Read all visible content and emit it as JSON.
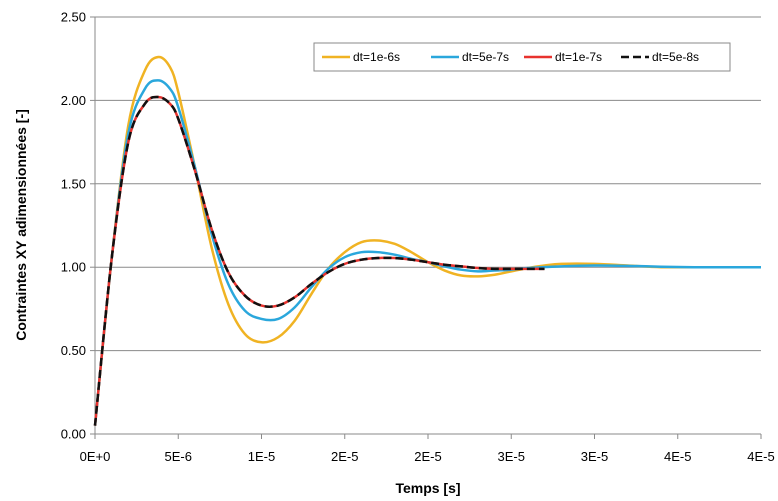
{
  "chart_data": {
    "type": "line",
    "xlabel": "Temps [s]",
    "ylabel": "Contraintes XY adimensionnées [-]",
    "xlim": [
      0,
      4e-05
    ],
    "ylim": [
      0,
      2.5
    ],
    "x_tick_values": [
      0,
      5e-06,
      1e-05,
      1.5e-05,
      2e-05,
      2.5e-05,
      3e-05,
      3.5e-05,
      4e-05
    ],
    "x_tick_labels": [
      "0E+0",
      "5E-6",
      "1E-5",
      "2E-5",
      "2E-5",
      "3E-5",
      "3E-5",
      "4E-5",
      "4E-5"
    ],
    "y_tick_values": [
      0,
      0.5,
      1.0,
      1.5,
      2.0,
      2.5
    ],
    "y_tick_labels": [
      "0.00",
      "0.50",
      "1.00",
      "1.50",
      "2.00",
      "2.50"
    ],
    "grid": "horizontal",
    "legend_position": "top-right",
    "series": [
      {
        "name": "dt=1e-6s",
        "color": "#F0B323",
        "dash": "solid",
        "x": [
          0,
          1e-06,
          2e-06,
          3e-06,
          3.8e-06,
          4.5e-06,
          5e-06,
          6e-06,
          7e-06,
          8e-06,
          9e-06,
          1e-05,
          1.1e-05,
          1.2e-05,
          1.3e-05,
          1.4e-05,
          1.5e-05,
          1.6e-05,
          1.7e-05,
          1.8e-05,
          1.9e-05,
          2e-05,
          2.1e-05,
          2.2e-05,
          2.3e-05,
          2.4e-05,
          2.5e-05,
          2.6e-05,
          2.7e-05,
          2.8e-05,
          3e-05,
          3.2e-05,
          3.4e-05,
          3.6e-05,
          3.8e-05,
          4e-05
        ],
        "y": [
          0.05,
          1.05,
          1.85,
          2.18,
          2.26,
          2.2,
          2.05,
          1.6,
          1.12,
          0.78,
          0.6,
          0.55,
          0.58,
          0.68,
          0.84,
          0.99,
          1.09,
          1.15,
          1.16,
          1.14,
          1.09,
          1.03,
          0.98,
          0.95,
          0.945,
          0.955,
          0.975,
          0.995,
          1.01,
          1.02,
          1.02,
          1.01,
          1.0,
          1.0,
          1.0,
          1.0
        ]
      },
      {
        "name": "dt=5e-7s",
        "color": "#2AA7DC",
        "dash": "solid",
        "x": [
          0,
          1e-06,
          2e-06,
          3e-06,
          3.8e-06,
          4.5e-06,
          5e-06,
          6e-06,
          7e-06,
          8e-06,
          9e-06,
          1e-05,
          1.1e-05,
          1.2e-05,
          1.3e-05,
          1.4e-05,
          1.5e-05,
          1.6e-05,
          1.7e-05,
          1.8e-05,
          1.9e-05,
          2e-05,
          2.1e-05,
          2.2e-05,
          2.3e-05,
          2.4e-05,
          2.5e-05,
          2.6e-05,
          2.8e-05,
          3e-05,
          3.2e-05,
          3.4e-05,
          3.6e-05,
          3.8e-05,
          4e-05
        ],
        "y": [
          0.05,
          1.05,
          1.8,
          2.07,
          2.12,
          2.07,
          1.96,
          1.6,
          1.2,
          0.9,
          0.74,
          0.69,
          0.69,
          0.76,
          0.88,
          0.99,
          1.06,
          1.09,
          1.09,
          1.075,
          1.05,
          1.03,
          1.005,
          0.985,
          0.975,
          0.98,
          0.985,
          0.995,
          1.005,
          1.01,
          1.008,
          1.003,
          1.0,
          1.0,
          1.0
        ]
      },
      {
        "name": "dt=1e-7s",
        "color": "#E8322E",
        "dash": "solid",
        "x": [
          0,
          1e-06,
          2e-06,
          3e-06,
          3.8e-06,
          4.5e-06,
          5e-06,
          6e-06,
          7e-06,
          8e-06,
          9e-06,
          1e-05,
          1.1e-05,
          1.2e-05,
          1.3e-05,
          1.4e-05,
          1.5e-05,
          1.6e-05,
          1.7e-05,
          1.8e-05,
          1.9e-05,
          2e-05,
          2.1e-05,
          2.2e-05,
          2.3e-05,
          2.4e-05,
          2.5e-05,
          2.6e-05,
          2.7e-05
        ],
        "y": [
          0.05,
          1.05,
          1.75,
          1.98,
          2.02,
          1.98,
          1.89,
          1.58,
          1.23,
          0.97,
          0.83,
          0.77,
          0.77,
          0.82,
          0.9,
          0.97,
          1.02,
          1.045,
          1.055,
          1.055,
          1.045,
          1.03,
          1.015,
          1.005,
          0.995,
          0.99,
          0.99,
          0.99,
          0.99
        ]
      },
      {
        "name": "dt=5e-8s",
        "color": "#111111",
        "dash": "dashed",
        "x": [
          0,
          1e-06,
          2e-06,
          3e-06,
          3.8e-06,
          4.5e-06,
          5e-06,
          6e-06,
          7e-06,
          8e-06,
          9e-06,
          1e-05,
          1.1e-05,
          1.2e-05,
          1.3e-05,
          1.4e-05,
          1.5e-05,
          1.6e-05,
          1.7e-05,
          1.8e-05,
          1.9e-05,
          2e-05,
          2.1e-05,
          2.2e-05,
          2.3e-05,
          2.4e-05,
          2.5e-05,
          2.6e-05,
          2.7e-05
        ],
        "y": [
          0.05,
          1.05,
          1.75,
          1.98,
          2.02,
          1.98,
          1.89,
          1.58,
          1.23,
          0.97,
          0.83,
          0.77,
          0.77,
          0.82,
          0.9,
          0.97,
          1.02,
          1.045,
          1.055,
          1.055,
          1.045,
          1.03,
          1.015,
          1.005,
          0.995,
          0.99,
          0.99,
          0.99,
          0.99
        ]
      }
    ]
  }
}
